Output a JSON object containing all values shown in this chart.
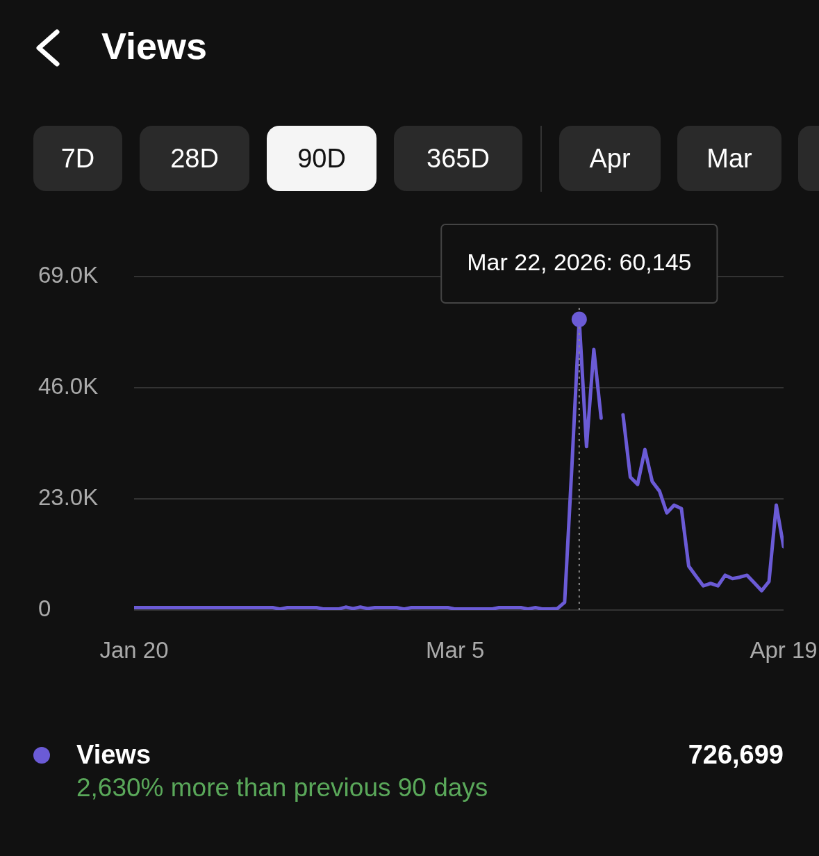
{
  "chart_data": {
    "type": "line",
    "title": "Views",
    "x": [
      "2026-01-20",
      "2026-01-21",
      "2026-01-22",
      "2026-01-23",
      "2026-01-24",
      "2026-01-25",
      "2026-01-26",
      "2026-01-27",
      "2026-01-28",
      "2026-01-29",
      "2026-01-30",
      "2026-01-31",
      "2026-02-01",
      "2026-02-02",
      "2026-02-03",
      "2026-02-04",
      "2026-02-05",
      "2026-02-06",
      "2026-02-07",
      "2026-02-08",
      "2026-02-09",
      "2026-02-10",
      "2026-02-11",
      "2026-02-12",
      "2026-02-13",
      "2026-02-14",
      "2026-02-15",
      "2026-02-16",
      "2026-02-17",
      "2026-02-18",
      "2026-02-19",
      "2026-02-20",
      "2026-02-21",
      "2026-02-22",
      "2026-02-23",
      "2026-02-24",
      "2026-02-25",
      "2026-02-26",
      "2026-02-27",
      "2026-02-28",
      "2026-03-01",
      "2026-03-02",
      "2026-03-03",
      "2026-03-04",
      "2026-03-05",
      "2026-03-06",
      "2026-03-07",
      "2026-03-08",
      "2026-03-09",
      "2026-03-10",
      "2026-03-11",
      "2026-03-12",
      "2026-03-13",
      "2026-03-14",
      "2026-03-15",
      "2026-03-16",
      "2026-03-17",
      "2026-03-18",
      "2026-03-19",
      "2026-03-20",
      "2026-03-21",
      "2026-03-22",
      "2026-03-23",
      "2026-03-24",
      "2026-03-25",
      "2026-03-26",
      "2026-03-27",
      "2026-03-28",
      "2026-03-29",
      "2026-03-30",
      "2026-03-31",
      "2026-04-01",
      "2026-04-02",
      "2026-04-03",
      "2026-04-04",
      "2026-04-05",
      "2026-04-06",
      "2026-04-07",
      "2026-04-08",
      "2026-04-09",
      "2026-04-10",
      "2026-04-11",
      "2026-04-12",
      "2026-04-13",
      "2026-04-14",
      "2026-04-15",
      "2026-04-16",
      "2026-04-17",
      "2026-04-18",
      "2026-04-19"
    ],
    "series": [
      {
        "name": "Views",
        "color": "#6b5bd6",
        "values": [
          500,
          500,
          500,
          500,
          500,
          500,
          500,
          500,
          500,
          500,
          500,
          500,
          500,
          500,
          500,
          500,
          500,
          500,
          500,
          500,
          200,
          500,
          500,
          500,
          500,
          500,
          200,
          200,
          200,
          600,
          300,
          600,
          300,
          500,
          500,
          500,
          500,
          200,
          500,
          500,
          500,
          500,
          500,
          500,
          200,
          200,
          200,
          200,
          200,
          200,
          500,
          500,
          500,
          500,
          200,
          500,
          200,
          200,
          300,
          1600,
          29900,
          60145,
          33800,
          53900,
          39700,
          null,
          null,
          40400,
          27500,
          26000,
          33200,
          26600,
          24600,
          20100,
          21700,
          21000,
          9100,
          7000,
          5000,
          5500,
          5000,
          7200,
          6500,
          6800,
          7200,
          5600,
          4000,
          5900,
          21700,
          13100
        ]
      }
    ],
    "xlim": [
      "2026-01-20",
      "2026-04-19"
    ],
    "xticks": [
      {
        "value": "2026-01-20",
        "label": "Jan 20"
      },
      {
        "value": "2026-03-05",
        "label": "Mar 5"
      },
      {
        "value": "2026-04-19",
        "label": "Apr 19"
      }
    ],
    "ylim": [
      0,
      69000
    ],
    "yticks": [
      0,
      {
        "value": 23000,
        "label": "23.0K"
      },
      {
        "value": 46000,
        "label": "46.0K"
      },
      {
        "value": 69000,
        "label": "69.0K"
      }
    ],
    "ref_lines": [
      {
        "axis": "x",
        "value": "2026-03-22",
        "color": "#888888",
        "line_style": "dotted"
      }
    ],
    "grid": "y",
    "legend": "bottom",
    "marker": "none",
    "line_style": "solid",
    "annotations": [
      "7D",
      "28D",
      "90D",
      "365D",
      "Apr",
      "Mar",
      {
        "text": "Mar 22, 2026: 60,145",
        "x": "2026-03-22",
        "y": 60145
      },
      "726,699",
      "2,630% more than previous 90 days"
    ]
  }
}
